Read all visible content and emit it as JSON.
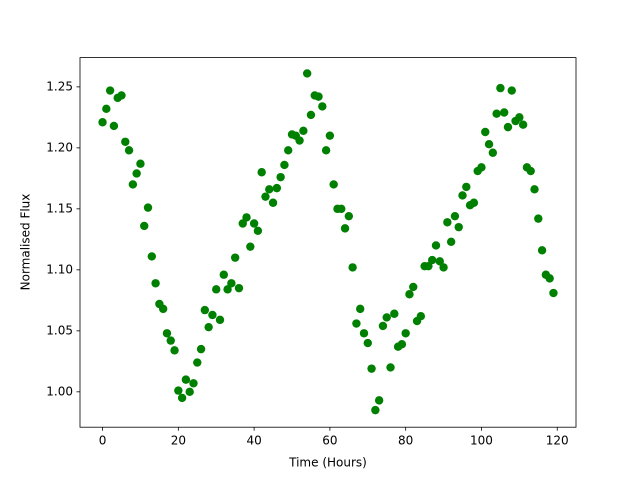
{
  "chart_data": {
    "type": "scatter",
    "xlabel": "Time (Hours)",
    "ylabel": "Normalised Flux",
    "color": "#008000",
    "x": [
      0,
      1,
      2,
      3,
      4,
      5,
      6,
      7,
      8,
      9,
      10,
      11,
      12,
      13,
      14,
      15,
      16,
      17,
      18,
      19,
      20,
      21,
      22,
      23,
      24,
      25,
      26,
      27,
      28,
      29,
      30,
      31,
      32,
      33,
      34,
      35,
      36,
      37,
      38,
      39,
      40,
      41,
      42,
      43,
      44,
      45,
      46,
      47,
      48,
      49,
      50,
      51,
      52,
      53,
      54,
      55,
      56,
      57,
      58,
      59,
      60,
      61,
      62,
      63,
      64,
      65,
      66,
      67,
      68,
      69,
      70,
      71,
      72,
      73,
      74,
      75,
      76,
      77,
      78,
      79,
      80,
      81,
      82,
      83,
      84,
      85,
      86,
      87,
      88,
      89,
      90,
      91,
      92,
      93,
      94,
      95,
      96,
      97,
      98,
      99,
      100,
      101,
      102,
      103,
      104,
      105,
      106,
      107,
      108,
      109,
      110,
      111,
      112,
      113,
      114,
      115,
      116,
      117,
      118,
      119
    ],
    "y": [
      1.221,
      1.232,
      1.247,
      1.218,
      1.241,
      1.243,
      1.205,
      1.198,
      1.17,
      1.179,
      1.187,
      1.136,
      1.151,
      1.111,
      1.089,
      1.072,
      1.068,
      1.048,
      1.042,
      1.034,
      1.001,
      0.995,
      1.01,
      1.0,
      1.007,
      1.024,
      1.035,
      1.067,
      1.053,
      1.063,
      1.084,
      1.059,
      1.096,
      1.084,
      1.089,
      1.11,
      1.085,
      1.138,
      1.143,
      1.119,
      1.138,
      1.132,
      1.18,
      1.16,
      1.166,
      1.155,
      1.167,
      1.176,
      1.186,
      1.198,
      1.211,
      1.21,
      1.206,
      1.214,
      1.261,
      1.227,
      1.243,
      1.242,
      1.234,
      1.198,
      1.21,
      1.17,
      1.15,
      1.15,
      1.134,
      1.144,
      1.102,
      1.056,
      1.068,
      1.048,
      1.04,
      1.019,
      0.985,
      0.993,
      1.054,
      1.061,
      1.02,
      1.064,
      1.037,
      1.039,
      1.048,
      1.08,
      1.086,
      1.058,
      1.062,
      1.103,
      1.103,
      1.108,
      1.12,
      1.107,
      1.102,
      1.139,
      1.123,
      1.144,
      1.135,
      1.161,
      1.168,
      1.153,
      1.155,
      1.181,
      1.184,
      1.213,
      1.203,
      1.196,
      1.228,
      1.249,
      1.229,
      1.217,
      1.247,
      1.222,
      1.225,
      1.219,
      1.184,
      1.181,
      1.166,
      1.142,
      1.116,
      1.096,
      1.093,
      1.081
    ],
    "xlim": [
      -5.95,
      124.95
    ],
    "ylim": [
      0.971,
      1.274
    ],
    "xticks": [
      0,
      20,
      40,
      60,
      80,
      100,
      120
    ],
    "yticks": [
      {
        "value": 1,
        "label": "1.00"
      },
      1.05,
      {
        "value": 1.1,
        "label": "1.10"
      },
      1.15,
      {
        "value": 1.2,
        "label": "1.20"
      },
      1.25
    ]
  }
}
